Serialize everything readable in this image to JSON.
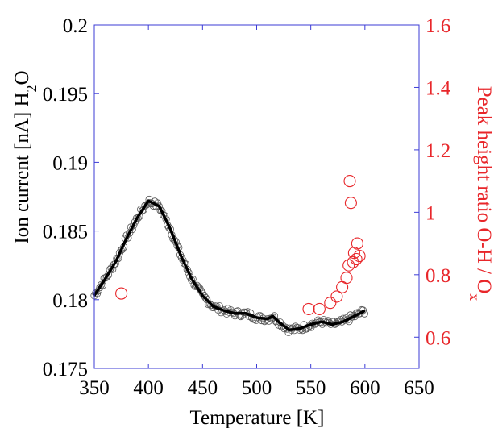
{
  "chart_data": {
    "type": "scatter",
    "xlabel": "Temperature [K]",
    "ylabel_left": "Ion current [nA] H₂O",
    "ylabel_right": "Peak height ratio O-H / Oₓ",
    "xlim": [
      350,
      650
    ],
    "ylim_left": [
      0.175,
      0.2
    ],
    "ylim_right": [
      0.5,
      1.6
    ],
    "x_ticks": [
      "350",
      "400",
      "450",
      "500",
      "550",
      "600",
      "650"
    ],
    "y_left_ticks": [
      "0.175",
      "0.18",
      "0.185",
      "0.19",
      "0.195",
      "0.2"
    ],
    "y_right_ticks": [
      "0.6",
      "0.8",
      "1",
      "1.2",
      "1.4",
      "1.6"
    ],
    "grid": false,
    "colors": {
      "left_axis": "#000000",
      "right_axis": "#e8262a",
      "box": "#3b3bd6",
      "points_left": "#555555",
      "points_right": "#e8262a"
    },
    "series": [
      {
        "axis": "left",
        "style": "markers+fit",
        "fit_x": [
          350,
          360,
          370,
          380,
          390,
          400,
          410,
          420,
          430,
          440,
          450,
          460,
          470,
          480,
          490,
          500,
          510,
          515,
          520,
          530,
          540,
          550,
          560,
          570,
          580,
          590,
          600
        ],
        "fit_y": [
          0.1803,
          0.1815,
          0.1828,
          0.1845,
          0.186,
          0.1872,
          0.1868,
          0.1852,
          0.1832,
          0.1815,
          0.1803,
          0.1795,
          0.1792,
          0.179,
          0.179,
          0.1787,
          0.1786,
          0.1788,
          0.1784,
          0.1778,
          0.1779,
          0.1782,
          0.1784,
          0.1782,
          0.1784,
          0.1788,
          0.1792
        ]
      },
      {
        "axis": "right",
        "style": "markers",
        "x": [
          375,
          548,
          558,
          568,
          574,
          579,
          583,
          585,
          586,
          587,
          589,
          590,
          592,
          593,
          595
        ],
        "y": [
          0.74,
          0.69,
          0.69,
          0.71,
          0.73,
          0.76,
          0.79,
          0.83,
          1.1,
          1.03,
          0.84,
          0.87,
          0.85,
          0.9,
          0.86
        ]
      }
    ]
  }
}
